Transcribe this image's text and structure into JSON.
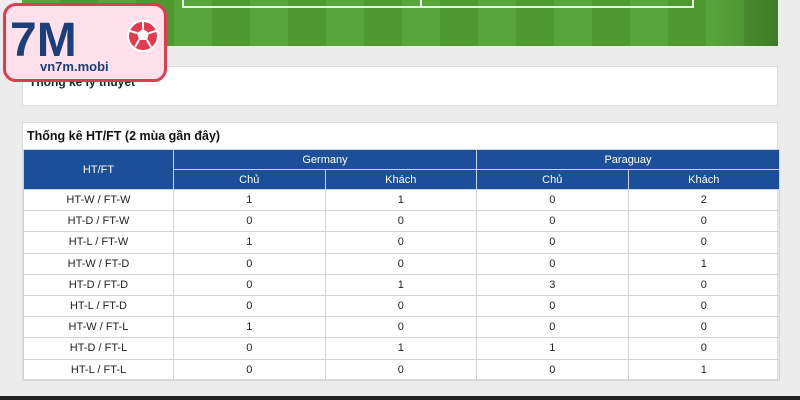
{
  "info_panel": {
    "title": "Thống kê lý thuyết"
  },
  "stats": {
    "title": "Thống kê HT/FT (2 mùa gần đây)",
    "header": {
      "row_label": "HT/FT",
      "team1": "Germany",
      "team2": "Paraguay",
      "sub": [
        "Chủ",
        "Khách",
        "Chủ",
        "Khách"
      ]
    },
    "rows": [
      {
        "label": "HT-W / FT-W",
        "values": [
          "1",
          "1",
          "0",
          "2"
        ]
      },
      {
        "label": "HT-D / FT-W",
        "values": [
          "0",
          "0",
          "0",
          "0"
        ]
      },
      {
        "label": "HT-L / FT-W",
        "values": [
          "1",
          "0",
          "0",
          "0"
        ]
      },
      {
        "label": "HT-W / FT-D",
        "values": [
          "0",
          "0",
          "0",
          "1"
        ]
      },
      {
        "label": "HT-D / FT-D",
        "values": [
          "0",
          "1",
          "3",
          "0"
        ]
      },
      {
        "label": "HT-L / FT-D",
        "values": [
          "0",
          "0",
          "0",
          "0"
        ]
      },
      {
        "label": "HT-W / FT-L",
        "values": [
          "1",
          "0",
          "0",
          "0"
        ]
      },
      {
        "label": "HT-D / FT-L",
        "values": [
          "0",
          "1",
          "1",
          "0"
        ]
      },
      {
        "label": "HT-L / FT-L",
        "values": [
          "0",
          "0",
          "0",
          "1"
        ]
      }
    ]
  },
  "logo": {
    "mark": "7M",
    "domain": "vn7m.mobi",
    "icon": "soccer-ball-icon",
    "colors": {
      "mark": "#1b3f7a",
      "ball": "#e23a4f",
      "border": "#e23a4f",
      "background": "#ffe1ec"
    }
  }
}
